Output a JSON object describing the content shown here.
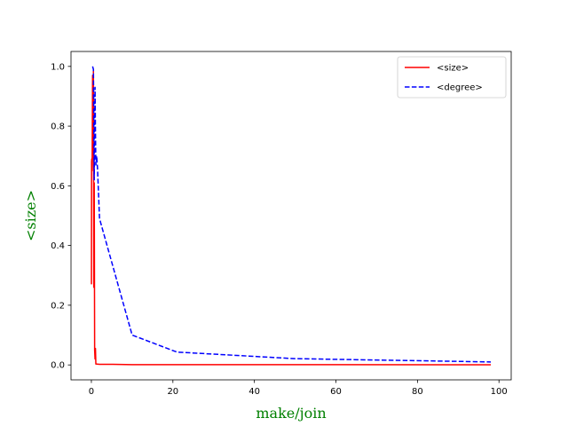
{
  "chart_data": {
    "type": "line",
    "title": "",
    "xlabel": "make/join",
    "ylabel": "<size>",
    "label_color": "#008000",
    "xlim": [
      -5,
      103
    ],
    "ylim": [
      -0.05,
      1.05
    ],
    "xticks": [
      0,
      20,
      40,
      60,
      80,
      100
    ],
    "yticks": [
      0.0,
      0.2,
      0.4,
      0.6,
      0.8,
      1.0
    ],
    "grid": false,
    "legend_position": "top-right",
    "series": [
      {
        "name": "<size>",
        "color": "#ff0000",
        "dash": "solid",
        "x": [
          0.02,
          0.05,
          0.1,
          0.15,
          0.2,
          0.3,
          0.4,
          0.5,
          0.6,
          0.7,
          0.8,
          0.9,
          1.0,
          1.1,
          2,
          5,
          10,
          20,
          50,
          98
        ],
        "y": [
          0.27,
          0.68,
          0.69,
          0.65,
          0.7,
          0.97,
          0.74,
          0.99,
          0.26,
          0.61,
          0.05,
          0.02,
          0.055,
          0.003,
          0.002,
          0.002,
          0.001,
          0.001,
          0.001,
          0.0005
        ]
      },
      {
        "name": "<degree>",
        "color": "#0000ff",
        "dash": "dashed",
        "x": [
          0.3,
          0.5,
          0.7,
          0.8,
          0.9,
          1.0,
          1.1,
          1.3,
          1.5,
          2,
          10,
          21,
          50,
          98
        ],
        "y": [
          1.0,
          0.99,
          0.62,
          0.8,
          0.93,
          0.78,
          0.67,
          0.7,
          0.66,
          0.49,
          0.1,
          0.043,
          0.021,
          0.01
        ]
      }
    ]
  }
}
